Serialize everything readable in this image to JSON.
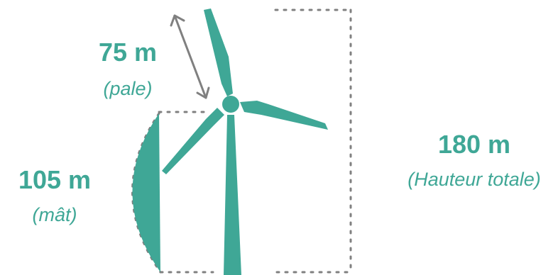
{
  "colors": {
    "teal": "#3fa796",
    "guide": "#808080",
    "background": "#ffffff"
  },
  "labels": {
    "blade": {
      "value": "75 m",
      "caption": "(pale)"
    },
    "mast": {
      "value": "105 m",
      "caption": "(mât)"
    },
    "total": {
      "value": "180 m",
      "caption": "(Hauteur totale)"
    }
  },
  "icons": {
    "turbine": "wind-turbine-icon",
    "arrow": "double-arrow-icon"
  }
}
